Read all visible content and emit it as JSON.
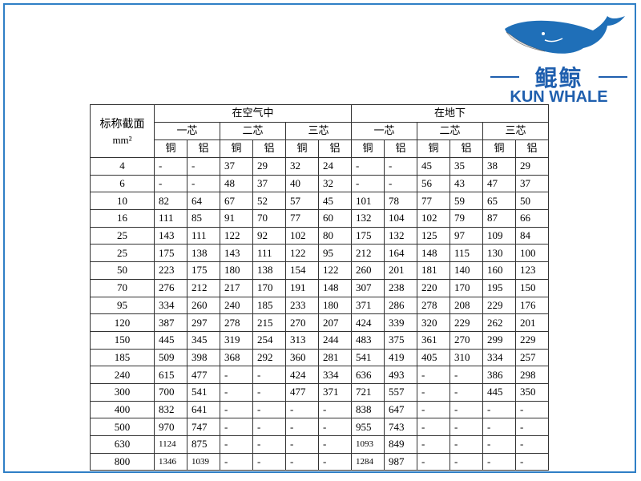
{
  "logo": {
    "name_cn": "鲲鲸",
    "name_en": "KUN WHALE",
    "brand_color": "#1f5fae"
  },
  "table": {
    "row_header": "标称截面",
    "row_header_unit": "mm²",
    "groups": [
      "在空气中",
      "在地下"
    ],
    "cores": [
      "一芯",
      "二芯",
      "三芯",
      "一芯",
      "二芯",
      "三芯"
    ],
    "materials": [
      "铜",
      "铝",
      "铜",
      "铝",
      "铜",
      "铝",
      "铜",
      "铝",
      "铜",
      "铝",
      "铜",
      "铝"
    ],
    "rows": [
      [
        "4",
        "-",
        "-",
        "37",
        "29",
        "32",
        "24",
        "-",
        "-",
        "45",
        "35",
        "38",
        "29"
      ],
      [
        "6",
        "-",
        "-",
        "48",
        "37",
        "40",
        "32",
        "-",
        "-",
        "56",
        "43",
        "47",
        "37"
      ],
      [
        "10",
        "82",
        "64",
        "67",
        "52",
        "57",
        "45",
        "101",
        "78",
        "77",
        "59",
        "65",
        "50"
      ],
      [
        "16",
        "111",
        "85",
        "91",
        "70",
        "77",
        "60",
        "132",
        "104",
        "102",
        "79",
        "87",
        "66"
      ],
      [
        "25",
        "143",
        "111",
        "122",
        "92",
        "102",
        "80",
        "175",
        "132",
        "125",
        "97",
        "109",
        "84"
      ],
      [
        "25",
        "175",
        "138",
        "143",
        "111",
        "122",
        "95",
        "212",
        "164",
        "148",
        "115",
        "130",
        "100"
      ],
      [
        "50",
        "223",
        "175",
        "180",
        "138",
        "154",
        "122",
        "260",
        "201",
        "181",
        "140",
        "160",
        "123"
      ],
      [
        "70",
        "276",
        "212",
        "217",
        "170",
        "191",
        "148",
        "307",
        "238",
        "220",
        "170",
        "195",
        "150"
      ],
      [
        "95",
        "334",
        "260",
        "240",
        "185",
        "233",
        "180",
        "371",
        "286",
        "278",
        "208",
        "229",
        "176"
      ],
      [
        "120",
        "387",
        "297",
        "278",
        "215",
        "270",
        "207",
        "424",
        "339",
        "320",
        "229",
        "262",
        "201"
      ],
      [
        "150",
        "445",
        "345",
        "319",
        "254",
        "313",
        "244",
        "483",
        "375",
        "361",
        "270",
        "299",
        "229"
      ],
      [
        "185",
        "509",
        "398",
        "368",
        "292",
        "360",
        "281",
        "541",
        "419",
        "405",
        "310",
        "334",
        "257"
      ],
      [
        "240",
        "615",
        "477",
        "-",
        "-",
        "424",
        "334",
        "636",
        "493",
        "-",
        "-",
        "386",
        "298"
      ],
      [
        "300",
        "700",
        "541",
        "-",
        "-",
        "477",
        "371",
        "721",
        "557",
        "-",
        "-",
        "445",
        "350"
      ],
      [
        "400",
        "832",
        "641",
        "-",
        "-",
        "-",
        "-",
        "838",
        "647",
        "-",
        "-",
        "-",
        "-"
      ],
      [
        "500",
        "970",
        "747",
        "-",
        "-",
        "-",
        "-",
        "955",
        "743",
        "-",
        "-",
        "-",
        "-"
      ],
      [
        "630",
        "1124",
        "875",
        "-",
        "-",
        "-",
        "-",
        "1093",
        "849",
        "-",
        "-",
        "-",
        "-"
      ],
      [
        "800",
        "1346",
        "1039",
        "-",
        "-",
        "-",
        "-",
        "1284",
        "987",
        "-",
        "-",
        "-",
        "-"
      ]
    ]
  }
}
